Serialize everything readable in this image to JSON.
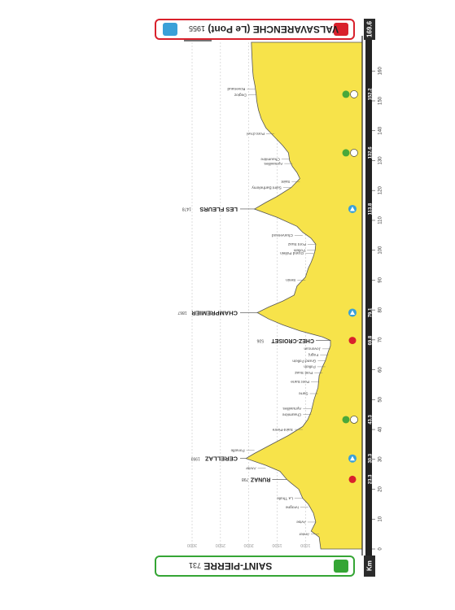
{
  "start": {
    "name": "SAINT-PIERRE",
    "alt": "731"
  },
  "finish": {
    "name": "VALSAVARENCHE (Le Pont)",
    "alt": "1955"
  },
  "distance_total": "169.6",
  "km_label": "Km",
  "colors": {
    "profile": "#f7e34a",
    "axis_band": "#222222",
    "start": "#35a535",
    "finish": "#d9212c",
    "gpm": "#3aa0d8",
    "sprint": "#d9212c",
    "feed": "#4aa83a"
  },
  "chart_data": {
    "type": "area",
    "orientation": "rotated-180",
    "xlabel": "Km",
    "xlim": [
      0,
      169.6
    ],
    "ylim": [
      0,
      3000
    ],
    "xticks": [
      0,
      10,
      20,
      30,
      40,
      50,
      60,
      70,
      80,
      90,
      100,
      110,
      120,
      130,
      140,
      150,
      160
    ],
    "yticks": [
      500,
      1000,
      1500,
      2000,
      2500,
      3000
    ],
    "grid": true,
    "profile": [
      {
        "x": 0,
        "y": 730
      },
      {
        "x": 4,
        "y": 760
      },
      {
        "x": 6,
        "y": 900
      },
      {
        "x": 9,
        "y": 820
      },
      {
        "x": 12,
        "y": 860
      },
      {
        "x": 15,
        "y": 950
      },
      {
        "x": 17,
        "y": 1050
      },
      {
        "x": 20,
        "y": 1120
      },
      {
        "x": 22,
        "y": 1250
      },
      {
        "x": 23.3,
        "y": 1330
      },
      {
        "x": 26,
        "y": 1450
      },
      {
        "x": 28,
        "y": 1700
      },
      {
        "x": 30.3,
        "y": 2050
      },
      {
        "x": 32,
        "y": 1900
      },
      {
        "x": 35,
        "y": 1600
      },
      {
        "x": 38,
        "y": 1300
      },
      {
        "x": 41,
        "y": 1050
      },
      {
        "x": 43.3,
        "y": 960
      },
      {
        "x": 46,
        "y": 900
      },
      {
        "x": 50,
        "y": 850
      },
      {
        "x": 54,
        "y": 780
      },
      {
        "x": 58,
        "y": 760
      },
      {
        "x": 61,
        "y": 700
      },
      {
        "x": 63,
        "y": 650
      },
      {
        "x": 66,
        "y": 600
      },
      {
        "x": 68,
        "y": 560
      },
      {
        "x": 69.8,
        "y": 560
      },
      {
        "x": 71,
        "y": 700
      },
      {
        "x": 73,
        "y": 1100
      },
      {
        "x": 75,
        "y": 1400
      },
      {
        "x": 77,
        "y": 1650
      },
      {
        "x": 79.1,
        "y": 1850
      },
      {
        "x": 81,
        "y": 1650
      },
      {
        "x": 83,
        "y": 1400
      },
      {
        "x": 85,
        "y": 1200
      },
      {
        "x": 88,
        "y": 1150
      },
      {
        "x": 91,
        "y": 1000
      },
      {
        "x": 94,
        "y": 950
      },
      {
        "x": 96,
        "y": 900
      },
      {
        "x": 98,
        "y": 860
      },
      {
        "x": 100,
        "y": 830
      },
      {
        "x": 102,
        "y": 820
      },
      {
        "x": 104,
        "y": 900
      },
      {
        "x": 106,
        "y": 1050
      },
      {
        "x": 108,
        "y": 1150
      },
      {
        "x": 111,
        "y": 1500
      },
      {
        "x": 113.8,
        "y": 1900
      },
      {
        "x": 116,
        "y": 1700
      },
      {
        "x": 118,
        "y": 1500
      },
      {
        "x": 121,
        "y": 1250
      },
      {
        "x": 124,
        "y": 1100
      },
      {
        "x": 126,
        "y": 1150
      },
      {
        "x": 128,
        "y": 1230
      },
      {
        "x": 130,
        "y": 1280
      },
      {
        "x": 132.6,
        "y": 1300
      },
      {
        "x": 135,
        "y": 1400
      },
      {
        "x": 138,
        "y": 1550
      },
      {
        "x": 141,
        "y": 1700
      },
      {
        "x": 144,
        "y": 1780
      },
      {
        "x": 147,
        "y": 1830
      },
      {
        "x": 150,
        "y": 1860
      },
      {
        "x": 152.2,
        "y": 1870
      },
      {
        "x": 155,
        "y": 1890
      },
      {
        "x": 158,
        "y": 1920
      },
      {
        "x": 160,
        "y": 1930
      },
      {
        "x": 165,
        "y": 1945
      },
      {
        "x": 169.6,
        "y": 1955
      }
    ],
    "climbs": [
      {
        "km": 30.3,
        "alt": 2050,
        "name": "CERELLAZ",
        "elev": "1993",
        "km_label": "30.3"
      },
      {
        "km": 79.1,
        "alt": 1850,
        "name": "CHAMPREMIER",
        "elev": "1867",
        "km_label": "79.1"
      },
      {
        "km": 113.8,
        "alt": 1900,
        "name": "LES FLEURS",
        "elev": "1478",
        "km_label": "113.8"
      }
    ],
    "sprints": [
      {
        "km": 23.3,
        "alt": 1330,
        "name": "RUNAZ",
        "elev": "798",
        "km_label": "23.3"
      },
      {
        "km": 69.8,
        "alt": 560,
        "name": "CHEZ-CROISET",
        "elev": "536",
        "km_label": "69.8"
      }
    ],
    "feeds": [
      {
        "km": 43.3,
        "km_label": "43.3"
      },
      {
        "km": 132.6,
        "km_label": "132.6"
      },
      {
        "km": 152.2,
        "km_label": "152.2"
      }
    ],
    "places": [
      {
        "km": 5,
        "alt": 760,
        "name": "Arvier"
      },
      {
        "km": 9,
        "alt": 820,
        "name": "Avise"
      },
      {
        "km": 14,
        "alt": 950,
        "name": "Ivrogne"
      },
      {
        "km": 17,
        "alt": 1050,
        "name": "La Thuile"
      },
      {
        "km": 27,
        "alt": 1700,
        "name": "Arvier"
      },
      {
        "km": 33,
        "alt": 1900,
        "name": "Ponaille"
      },
      {
        "km": 40,
        "alt": 1050,
        "name": "Saint-Pierre"
      },
      {
        "km": 45,
        "alt": 900,
        "name": "Chaumière"
      },
      {
        "km": 47,
        "alt": 900,
        "name": "Aymavilles"
      },
      {
        "km": 52,
        "alt": 780,
        "name": "Sarre"
      },
      {
        "km": 56,
        "alt": 760,
        "name": "Pont Sarre"
      },
      {
        "km": 59,
        "alt": 700,
        "name": "Pont Suaz"
      },
      {
        "km": 61,
        "alt": 650,
        "name": "Pollein"
      },
      {
        "km": 63,
        "alt": 640,
        "name": "Grand Pollein"
      },
      {
        "km": 65,
        "alt": 600,
        "name": "Fognj"
      },
      {
        "km": 67,
        "alt": 560,
        "name": "Jovencan"
      },
      {
        "km": 90,
        "alt": 1000,
        "name": "Senin"
      },
      {
        "km": 99,
        "alt": 860,
        "name": "Grand Pollein"
      },
      {
        "km": 100,
        "alt": 830,
        "name": "Pollein"
      },
      {
        "km": 102,
        "alt": 820,
        "name": "Pont Suaz"
      },
      {
        "km": 105,
        "alt": 1050,
        "name": "Charvensod"
      },
      {
        "km": 121,
        "alt": 1250,
        "name": "Saint Barthelemy"
      },
      {
        "km": 123,
        "alt": 1100,
        "name": "Saint"
      },
      {
        "km": 129,
        "alt": 1230,
        "name": "Aymavilles"
      },
      {
        "km": 130.5,
        "alt": 1280,
        "name": "Chaumière"
      },
      {
        "km": 139,
        "alt": 1550,
        "name": "Pont d'Ael"
      },
      {
        "km": 152,
        "alt": 1870,
        "name": "Degioz"
      },
      {
        "km": 154,
        "alt": 1890,
        "name": "Rovenaud"
      }
    ]
  }
}
